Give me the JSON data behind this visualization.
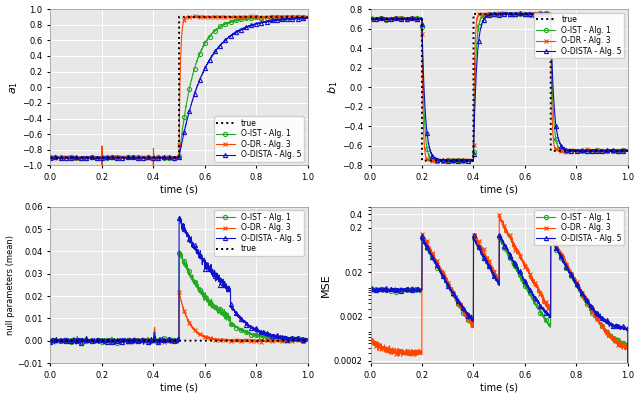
{
  "colors": {
    "oIST": "#22aa22",
    "oDR": "#ff4400",
    "oDISTA": "#1111cc",
    "true": "#000000"
  },
  "ylim_a1": [
    -1.0,
    1.0
  ],
  "ylim_b1": [
    -0.8,
    0.8
  ],
  "ylim_null": [
    -0.01,
    0.06
  ],
  "ylim_mse_log": [
    0.00018,
    0.6
  ],
  "ylabel_a1": "$a_1$",
  "ylabel_b1": "$b_1$",
  "ylabel_null": "null parameters (mean)",
  "ylabel_mse": "MSE",
  "xlabel": "time (s)",
  "xlim": [
    0,
    1
  ],
  "xticks": [
    0,
    0.2,
    0.4,
    0.6,
    0.8,
    1.0
  ],
  "yticks_a1": [
    -1.0,
    -0.8,
    -0.6,
    -0.4,
    -0.2,
    0,
    0.2,
    0.4,
    0.6,
    0.8,
    1.0
  ],
  "yticks_b1": [
    -0.8,
    -0.6,
    -0.4,
    -0.2,
    0,
    0.2,
    0.4,
    0.6,
    0.8
  ],
  "yticks_null": [
    -0.01,
    0.0,
    0.01,
    0.02,
    0.03,
    0.04,
    0.05,
    0.06
  ],
  "bg_color": "#e8e8e8",
  "grid_color": "#ffffff"
}
